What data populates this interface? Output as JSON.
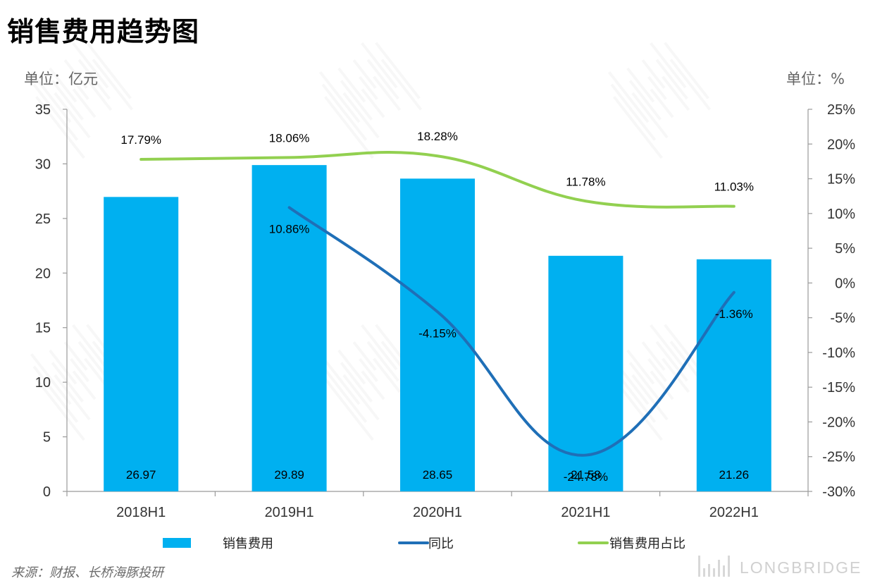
{
  "header": {
    "title": "销售费用趋势图"
  },
  "axes": {
    "left_unit": "单位：亿元",
    "right_unit": "单位：%"
  },
  "footer": {
    "source": "来源：财报、长桥海豚投研",
    "brand": "LONGBRIDGE"
  },
  "chart_data": {
    "type": "bar",
    "title": "销售费用趋势图",
    "categories": [
      "2018H1",
      "2019H1",
      "2020H1",
      "2021H1",
      "2022H1"
    ],
    "series": [
      {
        "name": "销售费用",
        "type": "bar",
        "axis": "left",
        "color": "#00B0F0",
        "values": [
          26.97,
          29.89,
          28.65,
          21.58,
          21.26
        ],
        "labels": [
          "26.97",
          "29.89",
          "28.65",
          "21.58",
          "21.26"
        ]
      },
      {
        "name": "同比",
        "type": "line",
        "axis": "right",
        "color": "#1F6FB7",
        "values": [
          null,
          10.86,
          -4.15,
          -24.78,
          -1.36
        ],
        "labels": [
          "",
          "10.86%",
          "-4.15%",
          "-24.78%",
          "-1.36%"
        ]
      },
      {
        "name": "销售费用占比",
        "type": "line",
        "axis": "right",
        "color": "#92D050",
        "values": [
          17.79,
          18.06,
          18.28,
          11.78,
          11.03
        ],
        "labels": [
          "17.79%",
          "18.06%",
          "18.28%",
          "11.78%",
          "11.03%"
        ]
      }
    ],
    "y_left": {
      "min": 0,
      "max": 35,
      "step": 5,
      "ticks": [
        "0",
        "5",
        "10",
        "15",
        "20",
        "25",
        "30",
        "35"
      ]
    },
    "y_right": {
      "min": -30,
      "max": 25,
      "step": 5,
      "ticks": [
        "-30%",
        "-25%",
        "-20%",
        "-15%",
        "-10%",
        "-5%",
        "0%",
        "5%",
        "10%",
        "15%",
        "20%",
        "25%"
      ]
    },
    "legend_position": "bottom",
    "grid": false
  }
}
